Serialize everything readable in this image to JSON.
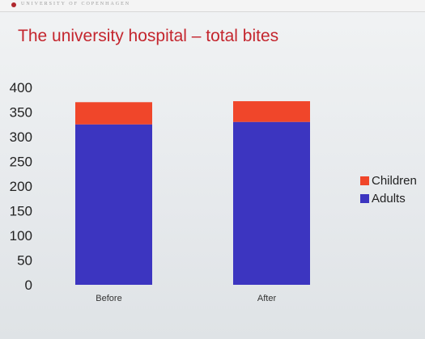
{
  "header": {
    "university": "UNIVERSITY OF COPENHAGEN"
  },
  "colors": {
    "title": "#c4262e",
    "children": "#f0462a",
    "adults": "#3c35c0"
  },
  "chart_data": {
    "type": "bar",
    "stacked": true,
    "title": "The university hospital – total bites",
    "xlabel": "",
    "ylabel": "",
    "categories": [
      "Before",
      "After"
    ],
    "series": [
      {
        "name": "Adults",
        "values": [
          325,
          330
        ],
        "color": "#3c35c0"
      },
      {
        "name": "Children",
        "values": [
          45,
          42
        ],
        "color": "#f0462a"
      }
    ],
    "ylim": [
      0,
      400
    ],
    "yticks": [
      0,
      50,
      100,
      150,
      200,
      250,
      300,
      350,
      400
    ],
    "grid": false,
    "legend_position": "right",
    "legend_order": [
      "Children",
      "Adults"
    ]
  }
}
